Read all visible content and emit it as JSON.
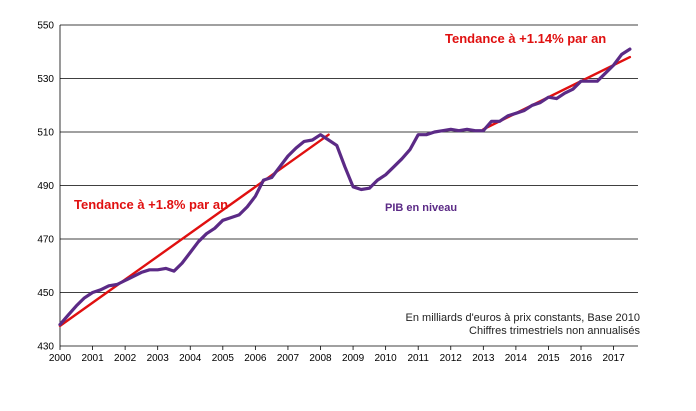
{
  "chart_data": {
    "type": "line",
    "x_ticks": [
      "2000",
      "2001",
      "2002",
      "2003",
      "2004",
      "2005",
      "2006",
      "2007",
      "2008",
      "2009",
      "2010",
      "2011",
      "2012",
      "2013",
      "2014",
      "2015",
      "2016",
      "2017"
    ],
    "y_ticks": [
      430,
      450,
      470,
      490,
      510,
      530,
      550
    ],
    "xlim": [
      2000.0,
      2017.75
    ],
    "ylim": [
      430,
      550
    ],
    "grid": true,
    "series": [
      {
        "name": "PIB en niveau",
        "color": "#5b2a86",
        "x": [
          2000.0,
          2000.25,
          2000.5,
          2000.75,
          2001.0,
          2001.25,
          2001.5,
          2001.75,
          2002.0,
          2002.25,
          2002.5,
          2002.75,
          2003.0,
          2003.25,
          2003.5,
          2003.75,
          2004.0,
          2004.25,
          2004.5,
          2004.75,
          2005.0,
          2005.25,
          2005.5,
          2005.75,
          2006.0,
          2006.25,
          2006.5,
          2006.75,
          2007.0,
          2007.25,
          2007.5,
          2007.75,
          2008.0,
          2008.25,
          2008.5,
          2008.75,
          2009.0,
          2009.25,
          2009.5,
          2009.75,
          2010.0,
          2010.25,
          2010.5,
          2010.75,
          2011.0,
          2011.25,
          2011.5,
          2011.75,
          2012.0,
          2012.25,
          2012.5,
          2012.75,
          2013.0,
          2013.25,
          2013.5,
          2013.75,
          2014.0,
          2014.25,
          2014.5,
          2014.75,
          2015.0,
          2015.25,
          2015.5,
          2015.75,
          2016.0,
          2016.25,
          2016.5,
          2016.75,
          2017.0,
          2017.25,
          2017.5
        ],
        "values": [
          438.0,
          441.5,
          445.0,
          448.0,
          450.0,
          451.0,
          452.5,
          453.0,
          454.5,
          456.0,
          457.5,
          458.5,
          458.5,
          459.0,
          458.0,
          461.0,
          465.0,
          469.0,
          472.0,
          474.0,
          477.0,
          478.0,
          479.0,
          482.0,
          486.0,
          492.0,
          493.0,
          497.0,
          501.0,
          504.0,
          506.5,
          507.0,
          509.0,
          507.0,
          505.0,
          497.0,
          489.5,
          488.5,
          489.0,
          492.0,
          494.0,
          497.0,
          500.0,
          503.5,
          509.0,
          509.0,
          510.0,
          510.5,
          511.0,
          510.5,
          511.0,
          510.5,
          510.5,
          514.0,
          514.0,
          516.0,
          517.0,
          518.0,
          520.0,
          521.0,
          523.0,
          522.5,
          524.5,
          526.0,
          529.0,
          529.0,
          529.0,
          532.0,
          535.0,
          539.0,
          541.0
        ]
      },
      {
        "name": "Tendance à +1.8% par an",
        "color": "#e01010",
        "x": [
          2000.0,
          2008.25
        ],
        "values": [
          437.5,
          509.0
        ]
      },
      {
        "name": "Tendance à +1.14% par an",
        "color": "#e01010",
        "x": [
          2013.0,
          2017.5
        ],
        "values": [
          511.0,
          538.0
        ]
      }
    ],
    "annotations": [
      {
        "text": "Tendance à +1.14% par an",
        "color": "#e01010"
      },
      {
        "text": "Tendance à +1.8% par an",
        "color": "#e01010"
      },
      {
        "text": "PIB en niveau",
        "color": "#5b2a86"
      }
    ],
    "notes": [
      "En milliards  d'euros à prix constants, Base 2010",
      "Chiffres trimestriels non annualisés"
    ]
  }
}
